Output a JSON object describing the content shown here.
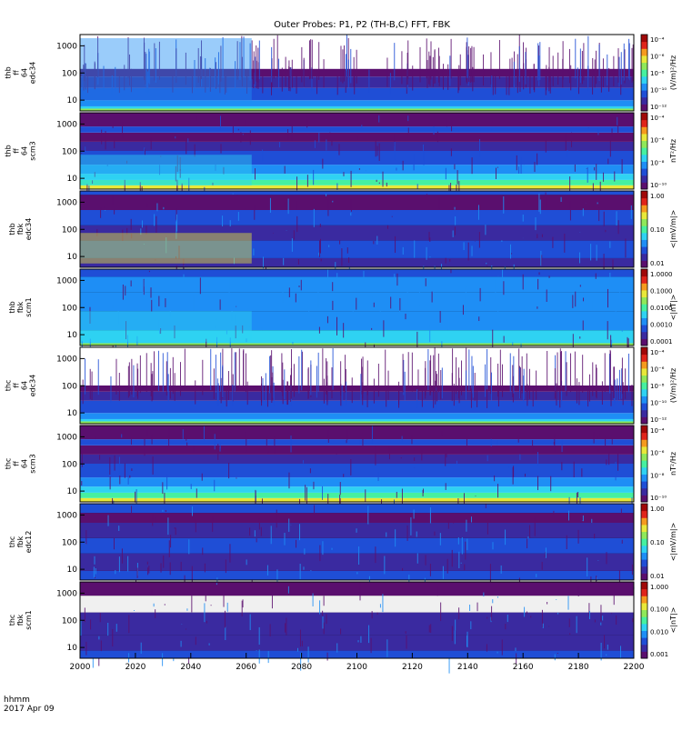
{
  "title": "Outer Probes: P1, P2 (TH-B,C) FFT, FBK",
  "footer": {
    "line1": "hhmm",
    "line2": "2017 Apr 09"
  },
  "colorbar_palette": [
    "#f0f0f0",
    "#5a0f6e",
    "#3a2aa0",
    "#1f4ed6",
    "#1e8ef5",
    "#2fd2f2",
    "#46f0a0",
    "#8fe85a",
    "#e8e83a",
    "#f59a1e",
    "#e0241a",
    "#a00808"
  ],
  "chart_data": {
    "type": "heatmap",
    "x": {
      "min": 2000,
      "max": 2200,
      "ticks": [
        "2000",
        "2020",
        "2040",
        "2060",
        "2080",
        "2100",
        "2120",
        "2140",
        "2160",
        "2180",
        "2200"
      ]
    },
    "panels": [
      {
        "label": [
          "thb",
          "ff",
          "64",
          "edc34"
        ],
        "yscale": "log",
        "yticks": [
          "10",
          "100",
          "1000"
        ],
        "zlabel": "(V/m)²/Hz",
        "zticks": [
          "10⁻⁴",
          "10⁻⁶",
          "10⁻⁸",
          "10⁻¹⁰",
          "10⁻¹²"
        ],
        "style": "burst-e"
      },
      {
        "label": [
          "thb",
          "ff",
          "64",
          "scm3"
        ],
        "yscale": "log",
        "yticks": [
          "10",
          "100",
          "1000"
        ],
        "zlabel": "nT²/Hz",
        "zticks": [
          "10⁻⁴",
          "10⁻⁶",
          "10⁻⁸",
          "10⁻¹⁰"
        ],
        "style": "scm-ff"
      },
      {
        "label": [
          "thb",
          "fbk",
          "edc34"
        ],
        "yscale": "log",
        "yticks": [
          "10",
          "100",
          "1000"
        ],
        "zlabel": "<|mV/m|>",
        "zticks": [
          "1.00",
          "0.10",
          "0.01"
        ],
        "style": "fbk-e-b"
      },
      {
        "label": [
          "thb",
          "fbk",
          "scm1"
        ],
        "yscale": "log",
        "yticks": [
          "10",
          "100",
          "1000"
        ],
        "zlabel": "<|nT|>",
        "zticks": [
          "1.0000",
          "0.1000",
          "0.0100",
          "0.0010",
          "0.0001"
        ],
        "style": "fbk-b-b"
      },
      {
        "label": [
          "thc",
          "ff",
          "64",
          "edc34"
        ],
        "yscale": "log",
        "yticks": [
          "10",
          "100",
          "1000"
        ],
        "zlabel": "(V/m)²/Hz",
        "zticks": [
          "10⁻⁴",
          "10⁻⁶",
          "10⁻⁸",
          "10⁻¹⁰",
          "10⁻¹²"
        ],
        "style": "burst-e-c"
      },
      {
        "label": [
          "thc",
          "ff",
          "64",
          "scm3"
        ],
        "yscale": "log",
        "yticks": [
          "10",
          "100",
          "1000"
        ],
        "zlabel": "nT²/Hz",
        "zticks": [
          "10⁻⁴",
          "10⁻⁶",
          "10⁻⁸",
          "10⁻¹⁰"
        ],
        "style": "scm-ff"
      },
      {
        "label": [
          "thc",
          "fbk",
          "edc12"
        ],
        "yscale": "log",
        "yticks": [
          "10",
          "100",
          "1000"
        ],
        "zlabel": "<|mV/m|>",
        "zticks": [
          "1.00",
          "0.10",
          "0.01"
        ],
        "style": "fbk-e-c"
      },
      {
        "label": [
          "thc",
          "fbk",
          "scm1"
        ],
        "yscale": "log",
        "yticks": [
          "10",
          "100",
          "1000"
        ],
        "zlabel": "<|nT|>",
        "zticks": [
          "1.000",
          "0.100",
          "0.010",
          "0.001"
        ],
        "style": "fbk-b-c"
      }
    ]
  }
}
